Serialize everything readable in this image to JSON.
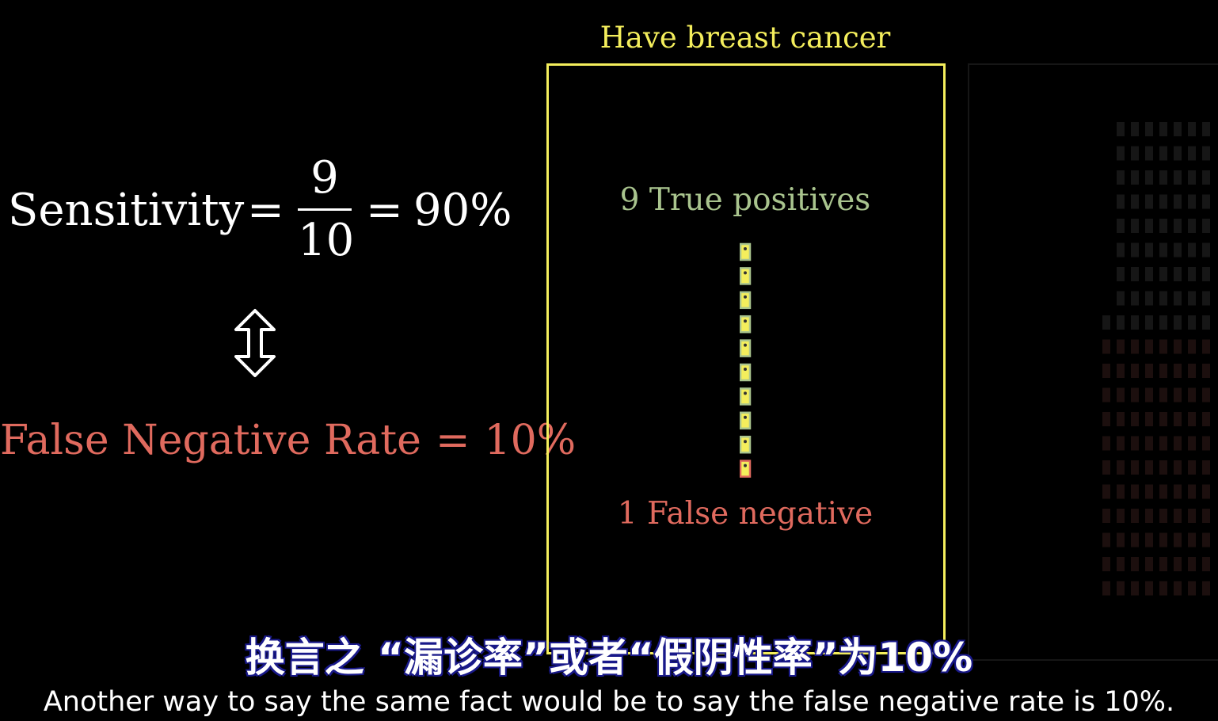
{
  "formula": {
    "word": "Sensitivity",
    "equals": "=",
    "numerator": "9",
    "denominator": "10",
    "percent": "90%"
  },
  "equivalence_icon": "up-down-double-arrow-icon",
  "fnr": {
    "label": "False Negative Rate",
    "equals": "=",
    "value": "10%"
  },
  "cancer_box": {
    "title": "Have breast cancer",
    "true_positives_label": "9 True positives",
    "false_negative_label": "1 False negative",
    "true_positive_count": 9,
    "false_negative_count": 1
  },
  "subtitles": {
    "chinese": "换言之 “漏诊率”或者“假阴性率”为10%",
    "english": "Another way to say the same fact would be to say the false negative rate is 10%."
  },
  "colors": {
    "cancer_box": "#f4ee5c",
    "true_positive": "#a9c48e",
    "false_negative": "#e06a5e",
    "text": "#ffffff"
  }
}
